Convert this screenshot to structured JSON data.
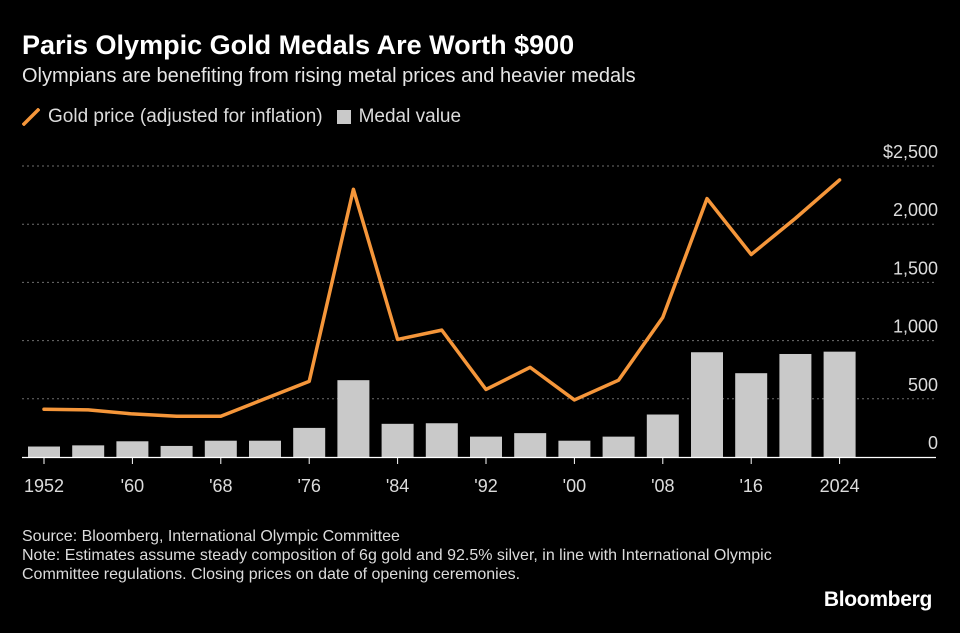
{
  "header": {
    "title": "Paris Olympic Gold Medals Are Worth $900",
    "subtitle": "Olympians are benefiting from rising metal prices and heavier medals"
  },
  "legend": {
    "line_label": "Gold price (adjusted for inflation)",
    "bar_label": "Medal value"
  },
  "footer": {
    "source": "Source: Bloomberg, International Olympic Committee",
    "note": "Note: Estimates assume steady composition of 6g gold and 92.5% silver, in line with International Olympic Committee regulations. Closing prices on date of opening ceremonies."
  },
  "brand": "Bloomberg",
  "chart_data": {
    "type": "bar",
    "title": "Paris Olympic Gold Medals Are Worth $900",
    "subtitle": "Olympians are benefiting from rising metal prices and heavier medals",
    "x": [
      1952,
      1956,
      1960,
      1964,
      1968,
      1972,
      1976,
      1980,
      1984,
      1988,
      1992,
      1996,
      2000,
      2004,
      2008,
      2012,
      2016,
      2020,
      2024
    ],
    "x_tick_values": [
      1952,
      1960,
      1968,
      1976,
      1984,
      1992,
      2000,
      2008,
      2016,
      2024
    ],
    "x_tick_labels": [
      "1952",
      "'60",
      "'68",
      "'76",
      "'84",
      "'92",
      "'00",
      "'08",
      "'16",
      "2024"
    ],
    "y_tick_values": [
      0,
      500,
      1000,
      1500,
      2000,
      2500
    ],
    "y_tick_labels": [
      "0",
      "500",
      "1,000",
      "1,500",
      "2,000",
      "$2,500"
    ],
    "ylim": [
      0,
      2500
    ],
    "grid": true,
    "legend_position": "top-left",
    "series": [
      {
        "name": "Gold price (adjusted for inflation)",
        "type": "line",
        "color": "#f5963a",
        "values": [
          410,
          405,
          370,
          350,
          350,
          500,
          650,
          2300,
          1010,
          1090,
          580,
          770,
          490,
          660,
          1200,
          2220,
          1740,
          2050,
          2380
        ]
      },
      {
        "name": "Medal value",
        "type": "bar",
        "color": "#c9c9c9",
        "values": [
          90,
          100,
          135,
          95,
          140,
          140,
          250,
          660,
          285,
          290,
          175,
          205,
          140,
          175,
          365,
          900,
          720,
          885,
          905
        ]
      }
    ]
  }
}
